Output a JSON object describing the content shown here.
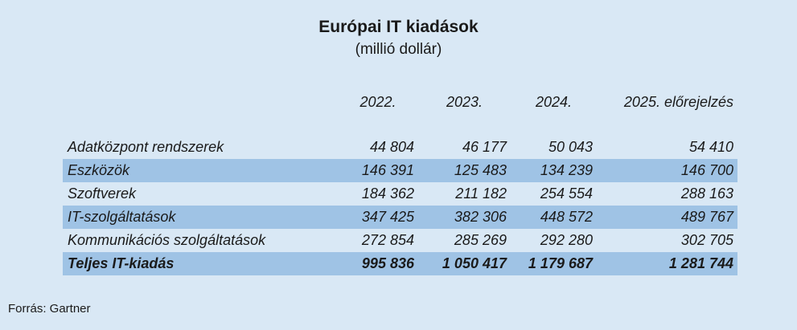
{
  "colors": {
    "background": "#d9e8f5",
    "row_highlight": "#9fc3e5",
    "text": "#1a1a1a"
  },
  "chart_data": {
    "type": "table",
    "title": "Európai IT kiadások",
    "subtitle": "(millió dollár)",
    "columns": [
      "",
      "2022.",
      "2023.",
      "2024.",
      "2025. előrejelzés"
    ],
    "rows": [
      {
        "label": "Adatközpont rendszerek",
        "values": [
          "44 804",
          "46 177",
          "50 043",
          "54 410"
        ],
        "highlight": false,
        "bold": false
      },
      {
        "label": "Eszközök",
        "values": [
          "146 391",
          "125 483",
          "134 239",
          "146 700"
        ],
        "highlight": true,
        "bold": false
      },
      {
        "label": "Szoftverek",
        "values": [
          "184 362",
          "211 182",
          "254 554",
          "288 163"
        ],
        "highlight": false,
        "bold": false
      },
      {
        "label": "IT-szolgáltatások",
        "values": [
          "347 425",
          "382 306",
          "448 572",
          "489 767"
        ],
        "highlight": true,
        "bold": false
      },
      {
        "label": "Kommunikációs szolgáltatások",
        "values": [
          "272 854",
          "285 269",
          "292 280",
          "302 705"
        ],
        "highlight": false,
        "bold": false
      },
      {
        "label": "Teljes IT-kiadás",
        "values": [
          "995 836",
          "1 050 417",
          "1 179 687",
          "1 281 744"
        ],
        "highlight": true,
        "bold": true
      }
    ],
    "source": "Forrás: Gartner"
  }
}
